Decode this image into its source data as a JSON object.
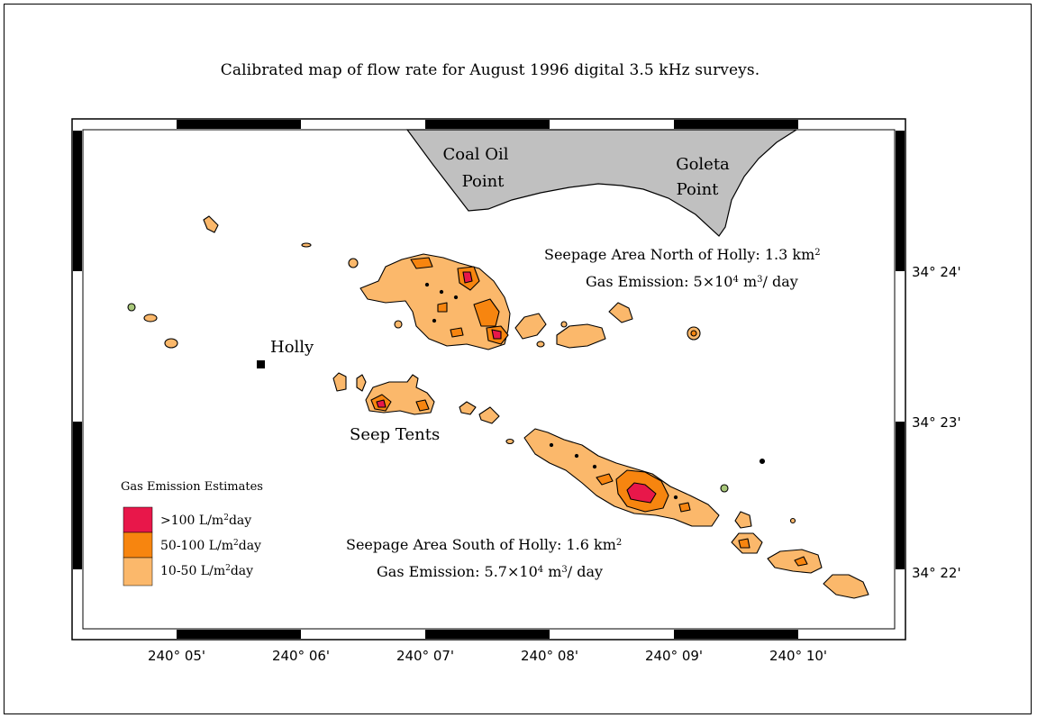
{
  "title": "Calibrated map of flow rate for August 1996 digital 3.5 kHz surveys.",
  "colors": {
    "high": "#e8174a",
    "mid": "#f7850f",
    "low": "#fbb86b",
    "land": "#c0c0c0",
    "frame_bar": "#000000"
  },
  "land_labels": {
    "coal_oil_line1": "Coal Oil",
    "coal_oil_line2": "Point",
    "goleta_line1": "Goleta",
    "goleta_line2": "Point"
  },
  "features": {
    "holly": "Holly",
    "seep_tents": "Seep Tents"
  },
  "north_area": {
    "label_prefix": "Seepage Area North of Holly: 1.3 km",
    "label_exp": "2",
    "emission_prefix": "Gas Emission: 5×10",
    "emission_exp1": "4",
    "emission_mid": " m",
    "emission_exp2": "3",
    "emission_suffix": "/ day"
  },
  "south_area": {
    "label_prefix": "Seepage Area South of Holly: 1.6 km",
    "label_exp": "2",
    "emission_prefix": "Gas Emission: 5.7×10",
    "emission_exp1": "4",
    "emission_mid": " m",
    "emission_exp2": "3",
    "emission_suffix": "/ day"
  },
  "legend": {
    "title": "Gas Emission Estimates",
    "items": [
      {
        "pre": ">100 L/m",
        "exp": "2",
        "post": "day",
        "color": "#e8174a"
      },
      {
        "pre": "50-100 L/m",
        "exp": "2",
        "post": "day",
        "color": "#f7850f"
      },
      {
        "pre": "10-50 L/m",
        "exp": "2",
        "post": "day",
        "color": "#fbb86b"
      }
    ]
  },
  "x_ticks": [
    "240° 05'",
    "240° 06'",
    "240° 07'",
    "240° 08'",
    "240° 09'",
    "240° 10'"
  ],
  "y_ticks": [
    "34° 24'",
    "34° 23'",
    "34° 22'"
  ]
}
